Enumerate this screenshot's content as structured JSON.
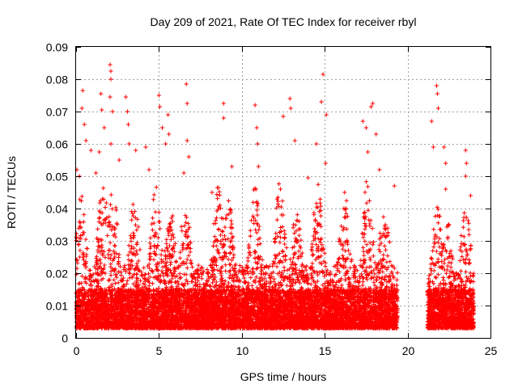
{
  "chart_data": {
    "type": "scatter",
    "title": "Day 209 of 2021, Rate Of TEC Index for receiver rbyl",
    "xlabel": "GPS time / hours",
    "ylabel": "ROTI / TECUs",
    "xlim": [
      0,
      25
    ],
    "ylim": [
      0,
      0.09
    ],
    "xticks": [
      0,
      5,
      10,
      15,
      20,
      25
    ],
    "xtick_labels": [
      "0",
      "5",
      "10",
      "15",
      "20",
      "25"
    ],
    "yticks": [
      0,
      0.01,
      0.02,
      0.03,
      0.04,
      0.05,
      0.06,
      0.07,
      0.08,
      0.09
    ],
    "ytick_labels": [
      "0",
      "0.01",
      "0.02",
      "0.03",
      "0.04",
      "0.05",
      "0.06",
      "0.07",
      "0.08",
      "0.09"
    ],
    "grid": true,
    "marker": "+",
    "color": "#ff0000",
    "series": [
      {
        "name": "ROTI",
        "segments": [
          {
            "time_range": [
              0.0,
              19.4
            ],
            "typical_range": [
              0.003,
              0.015
            ],
            "envelope_max": 0.05
          },
          {
            "time_range": [
              21.2,
              24.0
            ],
            "typical_range": [
              0.003,
              0.015
            ],
            "envelope_max": 0.045
          }
        ],
        "peaks": [
          {
            "x": 0.05,
            "y": 0.052
          },
          {
            "x": 0.2,
            "y": 0.05
          },
          {
            "x": 0.35,
            "y": 0.071
          },
          {
            "x": 0.4,
            "y": 0.0765
          },
          {
            "x": 0.5,
            "y": 0.066
          },
          {
            "x": 0.6,
            "y": 0.061
          },
          {
            "x": 0.9,
            "y": 0.058
          },
          {
            "x": 1.2,
            "y": 0.051
          },
          {
            "x": 1.4,
            "y": 0.0575
          },
          {
            "x": 1.5,
            "y": 0.0755
          },
          {
            "x": 1.55,
            "y": 0.0705
          },
          {
            "x": 1.7,
            "y": 0.065
          },
          {
            "x": 2.05,
            "y": 0.0845
          },
          {
            "x": 2.1,
            "y": 0.0825
          },
          {
            "x": 2.1,
            "y": 0.08
          },
          {
            "x": 2.05,
            "y": 0.0745
          },
          {
            "x": 2.2,
            "y": 0.07
          },
          {
            "x": 2.1,
            "y": 0.06
          },
          {
            "x": 2.6,
            "y": 0.055
          },
          {
            "x": 3.0,
            "y": 0.0745
          },
          {
            "x": 3.1,
            "y": 0.07
          },
          {
            "x": 3.15,
            "y": 0.066
          },
          {
            "x": 3.2,
            "y": 0.06
          },
          {
            "x": 3.6,
            "y": 0.058
          },
          {
            "x": 4.2,
            "y": 0.059
          },
          {
            "x": 4.4,
            "y": 0.052
          },
          {
            "x": 5.0,
            "y": 0.075
          },
          {
            "x": 5.05,
            "y": 0.0715
          },
          {
            "x": 5.2,
            "y": 0.065
          },
          {
            "x": 5.4,
            "y": 0.06
          },
          {
            "x": 5.55,
            "y": 0.069
          },
          {
            "x": 5.6,
            "y": 0.063
          },
          {
            "x": 6.5,
            "y": 0.051
          },
          {
            "x": 6.65,
            "y": 0.0785
          },
          {
            "x": 6.7,
            "y": 0.0725
          },
          {
            "x": 6.7,
            "y": 0.061
          },
          {
            "x": 6.8,
            "y": 0.056
          },
          {
            "x": 8.2,
            "y": 0.045
          },
          {
            "x": 8.9,
            "y": 0.0725
          },
          {
            "x": 8.9,
            "y": 0.068
          },
          {
            "x": 9.4,
            "y": 0.053
          },
          {
            "x": 10.8,
            "y": 0.072
          },
          {
            "x": 10.9,
            "y": 0.065
          },
          {
            "x": 10.95,
            "y": 0.06
          },
          {
            "x": 11.0,
            "y": 0.053
          },
          {
            "x": 12.5,
            "y": 0.0685
          },
          {
            "x": 12.9,
            "y": 0.074
          },
          {
            "x": 12.95,
            "y": 0.071
          },
          {
            "x": 13.2,
            "y": 0.061
          },
          {
            "x": 14.0,
            "y": 0.0495
          },
          {
            "x": 14.5,
            "y": 0.06
          },
          {
            "x": 14.8,
            "y": 0.073
          },
          {
            "x": 14.9,
            "y": 0.0815
          },
          {
            "x": 15.1,
            "y": 0.069
          },
          {
            "x": 15.05,
            "y": 0.054
          },
          {
            "x": 16.2,
            "y": 0.045
          },
          {
            "x": 17.3,
            "y": 0.067
          },
          {
            "x": 17.5,
            "y": 0.065
          },
          {
            "x": 17.6,
            "y": 0.0575
          },
          {
            "x": 17.8,
            "y": 0.0715
          },
          {
            "x": 17.9,
            "y": 0.0725
          },
          {
            "x": 18.1,
            "y": 0.063
          },
          {
            "x": 18.3,
            "y": 0.052
          },
          {
            "x": 19.2,
            "y": 0.047
          },
          {
            "x": 21.45,
            "y": 0.067
          },
          {
            "x": 21.55,
            "y": 0.059
          },
          {
            "x": 21.75,
            "y": 0.078
          },
          {
            "x": 21.8,
            "y": 0.0755
          },
          {
            "x": 21.85,
            "y": 0.071
          },
          {
            "x": 22.2,
            "y": 0.059
          },
          {
            "x": 22.3,
            "y": 0.054
          },
          {
            "x": 22.3,
            "y": 0.046
          },
          {
            "x": 23.5,
            "y": 0.058
          },
          {
            "x": 23.55,
            "y": 0.054
          },
          {
            "x": 23.5,
            "y": 0.05
          },
          {
            "x": 23.8,
            "y": 0.044
          }
        ]
      }
    ]
  }
}
